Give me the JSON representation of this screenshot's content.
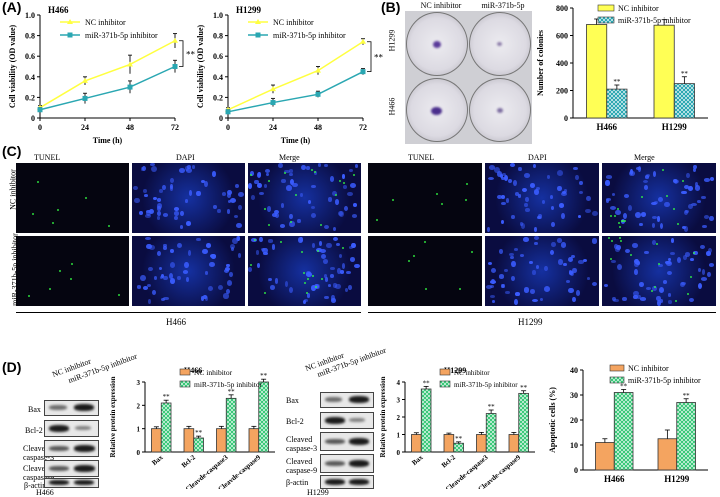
{
  "panels": {
    "A": "(A)",
    "B": "(B)",
    "C": "(C)",
    "D": "(D)"
  },
  "colors": {
    "nc": "#ffff40",
    "mir": "#2aa7b2",
    "nc_bar_d3": "#f4a460",
    "mir_bar_d3": "#38c878",
    "sig": "#333333"
  },
  "panelB_images": {
    "col_labels": [
      "NC inhibitor",
      "miR-371b-5p inhibitor"
    ],
    "row_labels": [
      "H1299",
      "H466"
    ]
  },
  "panelC": {
    "col_labels": [
      "TUNEL",
      "DAPI",
      "Merge"
    ],
    "row_labels": [
      "NC inhibitor",
      "miR-371b-5p inhibitor"
    ],
    "groups": [
      "H466",
      "H1299"
    ]
  },
  "blots": [
    {
      "cell": "H466",
      "col_labels": [
        "NC inhibitor",
        "miR-371b-5p inhibitor"
      ],
      "rows": [
        "Bax",
        "Bcl-2",
        "Cleaved caspase-3",
        "Cleaved caspase-9",
        "β-actin"
      ]
    },
    {
      "cell": "H1299",
      "col_labels": [
        "NC inhibitor",
        "miR-371b-5p inhibitor"
      ],
      "rows": [
        "Bax",
        "Bcl-2",
        "Cleaved caspase-3",
        "Cleaved caspase-9",
        "β-actin"
      ]
    }
  ],
  "chart_data": [
    {
      "id": "A1",
      "type": "line",
      "title": "H466",
      "xlabel": "Time (h)",
      "ylabel": "Cell viability (OD value)",
      "x": [
        0,
        24,
        48,
        72
      ],
      "xlim": [
        0,
        72
      ],
      "ylim": [
        0,
        1.0
      ],
      "yticks": [
        0,
        0.2,
        0.4,
        0.6,
        0.8,
        1.0
      ],
      "ytick_labels": [
        "0",
        "0.2",
        "0.4",
        "0.6",
        "0.8",
        "1.0"
      ],
      "series": [
        {
          "name": "NC inhibitor",
          "values": [
            0.1,
            0.36,
            0.52,
            0.75
          ],
          "errors": [
            0.02,
            0.04,
            0.09,
            0.07
          ]
        },
        {
          "name": "miR-371b-5p inhibitor",
          "values": [
            0.08,
            0.19,
            0.3,
            0.5
          ],
          "errors": [
            0.02,
            0.05,
            0.06,
            0.06
          ]
        }
      ],
      "annotation": "**"
    },
    {
      "id": "A2",
      "type": "line",
      "title": "H1299",
      "xlabel": "Time (h)",
      "ylabel": "Cell viability (OD value)",
      "x": [
        0,
        24,
        48,
        72
      ],
      "xlim": [
        0,
        72
      ],
      "ylim": [
        0,
        1.0
      ],
      "yticks": [
        0,
        0.2,
        0.4,
        0.6,
        0.8,
        1.0
      ],
      "ytick_labels": [
        "0",
        "0.2",
        "0.4",
        "0.6",
        "0.8",
        "1.0"
      ],
      "series": [
        {
          "name": "NC inhibitor",
          "values": [
            0.08,
            0.28,
            0.46,
            0.74
          ],
          "errors": [
            0.02,
            0.04,
            0.04,
            0.03
          ]
        },
        {
          "name": "miR-371b-5p inhibitor",
          "values": [
            0.06,
            0.15,
            0.23,
            0.45
          ],
          "errors": [
            0.02,
            0.04,
            0.03,
            0.03
          ]
        }
      ],
      "annotation": "**"
    },
    {
      "id": "B",
      "type": "bar",
      "title": "",
      "xlabel": "",
      "ylabel": "Number of colonies",
      "categories": [
        "H466",
        "H1299"
      ],
      "ylim": [
        0,
        800
      ],
      "yticks": [
        0,
        200,
        400,
        600,
        800
      ],
      "series": [
        {
          "name": "NC inhibitor",
          "values": [
            680,
            675
          ],
          "errors": [
            40,
            40
          ]
        },
        {
          "name": "miR-371b-5p inhibitor",
          "values": [
            210,
            250
          ],
          "errors": [
            30,
            50
          ]
        }
      ],
      "sig": [
        "**",
        "**"
      ]
    },
    {
      "id": "D1",
      "type": "bar",
      "title": "H466",
      "xlabel": "",
      "ylabel": "Relative protein expression",
      "categories": [
        "Bax",
        "Bcl-2",
        "Cleavde-caspase3",
        "Cleavde-caspase9"
      ],
      "ylim": [
        0,
        3
      ],
      "yticks": [
        0,
        1,
        2,
        3
      ],
      "series": [
        {
          "name": "NC inhibitor",
          "values": [
            1.0,
            1.0,
            1.0,
            1.0
          ],
          "errors": [
            0.08,
            0.1,
            0.1,
            0.1
          ]
        },
        {
          "name": "miR-371b-5p inhibitor",
          "values": [
            2.1,
            0.6,
            2.3,
            3.0
          ],
          "errors": [
            0.12,
            0.08,
            0.15,
            0.12
          ]
        }
      ],
      "sig": [
        "**",
        "**",
        "**",
        "**"
      ]
    },
    {
      "id": "D2",
      "type": "bar",
      "title": "H1299",
      "xlabel": "",
      "ylabel": "Relative protein expression",
      "categories": [
        "Bax",
        "Bcl-2",
        "Cleavde-caspase3",
        "Cleavde-caspase9"
      ],
      "ylim": [
        0,
        4
      ],
      "yticks": [
        0,
        1,
        2,
        3,
        4
      ],
      "series": [
        {
          "name": "NC inhibitor",
          "values": [
            1.0,
            1.0,
            1.0,
            1.0
          ],
          "errors": [
            0.1,
            0.08,
            0.12,
            0.12
          ]
        },
        {
          "name": "miR-371b-5p inhibitor",
          "values": [
            3.6,
            0.5,
            2.2,
            3.35
          ],
          "errors": [
            0.15,
            0.08,
            0.2,
            0.15
          ]
        }
      ],
      "sig": [
        "**",
        "**",
        "**",
        "**"
      ]
    },
    {
      "id": "D3",
      "type": "bar",
      "title": "",
      "xlabel": "",
      "ylabel": "Apoptotic cells (%)",
      "categories": [
        "H466",
        "H1299"
      ],
      "ylim": [
        0,
        40
      ],
      "yticks": [
        0,
        10,
        20,
        30,
        40
      ],
      "series": [
        {
          "name": "NC inhibitor",
          "values": [
            11,
            12.5
          ],
          "errors": [
            1.5,
            3.5
          ]
        },
        {
          "name": "miR-371b-5p inhibitor",
          "values": [
            31,
            27
          ],
          "errors": [
            1.2,
            1.5
          ]
        }
      ],
      "sig": [
        "**",
        "**"
      ]
    }
  ]
}
